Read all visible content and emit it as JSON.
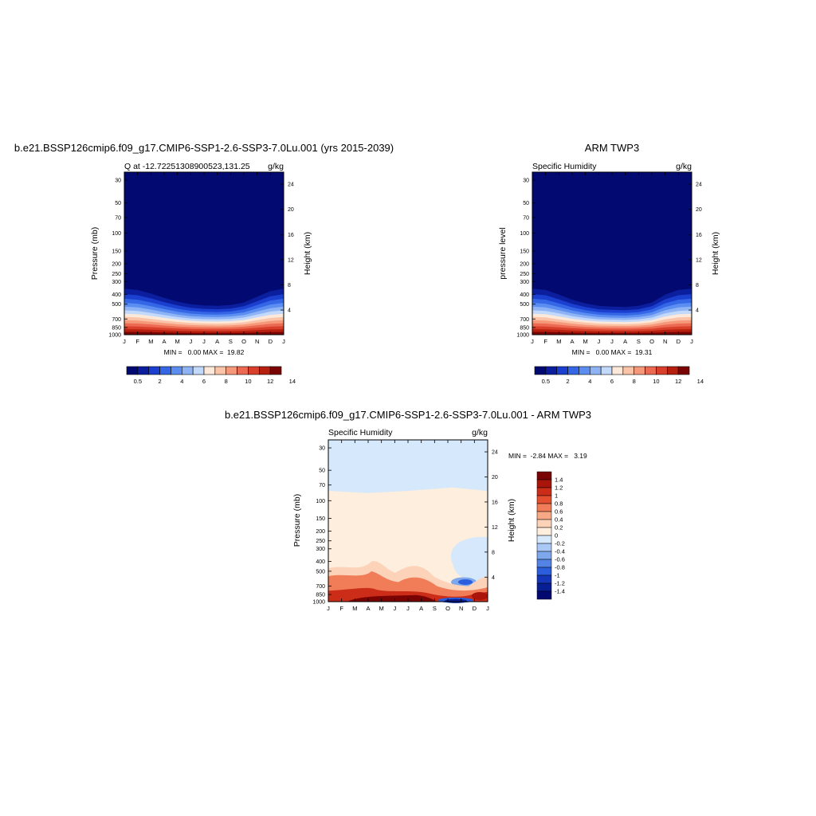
{
  "chart_data": [
    {
      "type": "heatmap",
      "title": "b.e21.BSSP126cmip6.f09_g17.CMIP6-SSP1-2.6-SSP3-7.0Lu.001 (yrs 2015-2039)",
      "left_label": "Q at -12.72251308900523,131.25",
      "right_label": "g/kg",
      "ylabel": "Pressure (mb)",
      "ylabel_right": "Height (km)",
      "x": [
        "J",
        "F",
        "M",
        "A",
        "M",
        "J",
        "J",
        "A",
        "S",
        "O",
        "N",
        "D",
        "J"
      ],
      "y_ticks": [
        30,
        50,
        70,
        100,
        150,
        200,
        250,
        300,
        400,
        500,
        700,
        850,
        1000
      ],
      "height_ticks": [
        24,
        20,
        16,
        12,
        8,
        4
      ],
      "stats": "MIN =   0.00 MAX =  19.82",
      "colorbar_labels": [
        "0.5",
        "2",
        "4",
        "6",
        "8",
        "10",
        "12",
        "14"
      ],
      "boundary_layer_top_mb": [
        290,
        300,
        330,
        370,
        410,
        440,
        455,
        460,
        450,
        420,
        360,
        310,
        290
      ]
    },
    {
      "type": "heatmap",
      "title": "ARM TWP3",
      "left_label": "Specific Humidity",
      "right_label": "g/kg",
      "ylabel": "pressure level",
      "ylabel_right": "Height (km)",
      "x": [
        "J",
        "F",
        "M",
        "A",
        "M",
        "J",
        "J",
        "A",
        "S",
        "O",
        "N",
        "D",
        "J"
      ],
      "y_ticks": [
        30,
        50,
        70,
        100,
        150,
        200,
        250,
        300,
        400,
        500,
        700,
        850,
        1000
      ],
      "height_ticks": [
        24,
        20,
        16,
        12,
        8,
        4
      ],
      "stats": "MIN =   0.00 MAX =  19.31",
      "colorbar_labels": [
        "0.5",
        "2",
        "4",
        "6",
        "8",
        "10",
        "12",
        "14"
      ],
      "boundary_layer_top_mb": [
        290,
        300,
        340,
        390,
        430,
        460,
        470,
        475,
        460,
        420,
        340,
        300,
        290
      ]
    },
    {
      "type": "heatmap",
      "title": "b.e21.BSSP126cmip6.f09_g17.CMIP6-SSP1-2.6-SSP3-7.0Lu.001 - ARM TWP3",
      "left_label": "Specific Humidity",
      "right_label": "g/kg",
      "ylabel": "Pressure (mb)",
      "ylabel_right": "Height (km)",
      "x": [
        "J",
        "F",
        "M",
        "A",
        "M",
        "J",
        "J",
        "A",
        "S",
        "O",
        "N",
        "D",
        "J"
      ],
      "y_ticks": [
        30,
        50,
        70,
        100,
        150,
        200,
        250,
        300,
        400,
        500,
        700,
        850,
        1000
      ],
      "height_ticks": [
        24,
        20,
        16,
        12,
        8,
        4
      ],
      "stats": "MIN =  -2.84 MAX =   3.19",
      "colorbar_labels": [
        "1.4",
        "1.2",
        "1",
        "0.8",
        "0.6",
        "0.4",
        "0.2",
        "0",
        "-0.2",
        "-0.4",
        "-0.6",
        "-0.8",
        "-1",
        "-1.2",
        "-1.4"
      ]
    }
  ],
  "palettes": {
    "moisture": [
      "#020a72",
      "#0a1e9e",
      "#1b3fcf",
      "#3466e6",
      "#5b8ef0",
      "#8eb4f6",
      "#c3d9fb",
      "#fde9d9",
      "#fbc4a8",
      "#f6987a",
      "#ec6a52",
      "#d9402c",
      "#b7200f",
      "#7a0403"
    ],
    "difference": [
      "#7a0403",
      "#a9140b",
      "#cb2d18",
      "#e4502f",
      "#f07c58",
      "#f7a884",
      "#fcd2b8",
      "#fdeedd",
      "#d5e8fc",
      "#a9c8f5",
      "#7ea7ec",
      "#5384e5",
      "#2a5edd",
      "#1536b9",
      "#071e94",
      "#020a72"
    ]
  }
}
